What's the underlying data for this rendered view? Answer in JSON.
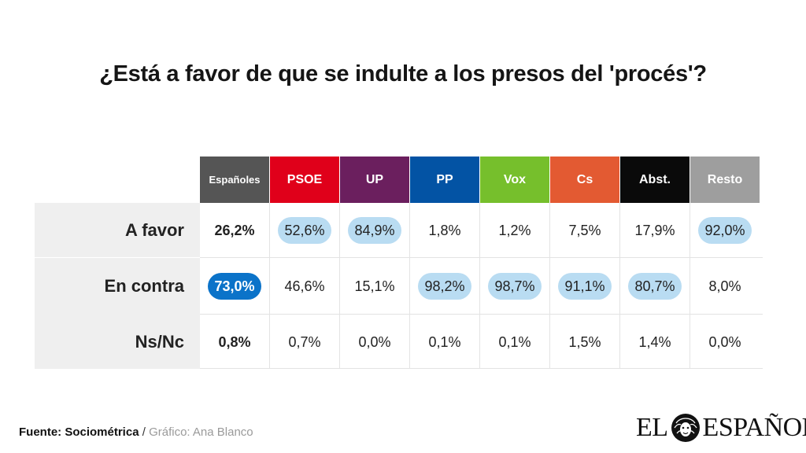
{
  "title": "¿Está a favor de que se indulte a los presos del 'procés'?",
  "chart_data": {
    "type": "table",
    "title": "¿Está a favor de que se indulte a los presos del 'procés'?",
    "columns": [
      {
        "label": "Españoles",
        "color": "#555555"
      },
      {
        "label": "PSOE",
        "color": "#e0001a"
      },
      {
        "label": "UP",
        "color": "#6b1f5e"
      },
      {
        "label": "PP",
        "color": "#0353a4"
      },
      {
        "label": "Vox",
        "color": "#76bf2c"
      },
      {
        "label": "Cs",
        "color": "#e35a32"
      },
      {
        "label": "Abst.",
        "color": "#0a0a0a"
      },
      {
        "label": "Resto",
        "color": "#9e9e9e"
      }
    ],
    "rows": [
      {
        "label": "A favor",
        "cells": [
          {
            "text": "26,2%",
            "value": 26.2,
            "highlight": "none"
          },
          {
            "text": "52,6%",
            "value": 52.6,
            "highlight": "light"
          },
          {
            "text": "84,9%",
            "value": 84.9,
            "highlight": "light"
          },
          {
            "text": "1,8%",
            "value": 1.8,
            "highlight": "none"
          },
          {
            "text": "1,2%",
            "value": 1.2,
            "highlight": "none"
          },
          {
            "text": "7,5%",
            "value": 7.5,
            "highlight": "none"
          },
          {
            "text": "17,9%",
            "value": 17.9,
            "highlight": "none"
          },
          {
            "text": "92,0%",
            "value": 92.0,
            "highlight": "light"
          }
        ]
      },
      {
        "label": "En contra",
        "cells": [
          {
            "text": "73,0%",
            "value": 73.0,
            "highlight": "strong"
          },
          {
            "text": "46,6%",
            "value": 46.6,
            "highlight": "none"
          },
          {
            "text": "15,1%",
            "value": 15.1,
            "highlight": "none"
          },
          {
            "text": "98,2%",
            "value": 98.2,
            "highlight": "light"
          },
          {
            "text": "98,7%",
            "value": 98.7,
            "highlight": "light"
          },
          {
            "text": "91,1%",
            "value": 91.1,
            "highlight": "light"
          },
          {
            "text": "80,7%",
            "value": 80.7,
            "highlight": "light"
          },
          {
            "text": "8,0%",
            "value": 8.0,
            "highlight": "none"
          }
        ]
      },
      {
        "label": "Ns/Nc",
        "cells": [
          {
            "text": "0,8%",
            "value": 0.8,
            "highlight": "none"
          },
          {
            "text": "0,7%",
            "value": 0.7,
            "highlight": "none"
          },
          {
            "text": "0,0%",
            "value": 0.0,
            "highlight": "none"
          },
          {
            "text": "0,1%",
            "value": 0.1,
            "highlight": "none"
          },
          {
            "text": "0,1%",
            "value": 0.1,
            "highlight": "none"
          },
          {
            "text": "1,5%",
            "value": 1.5,
            "highlight": "none"
          },
          {
            "text": "1,4%",
            "value": 1.4,
            "highlight": "none"
          },
          {
            "text": "0,0%",
            "value": 0.0,
            "highlight": "none"
          }
        ]
      }
    ]
  },
  "footer": {
    "source_label": "Fuente: Sociométrica",
    "separator": "/",
    "credit": "Gráfico: Ana Blanco"
  },
  "logo": {
    "left_text": "EL",
    "right_text": "ESPAÑOL",
    "icon": "lion-head-icon"
  }
}
